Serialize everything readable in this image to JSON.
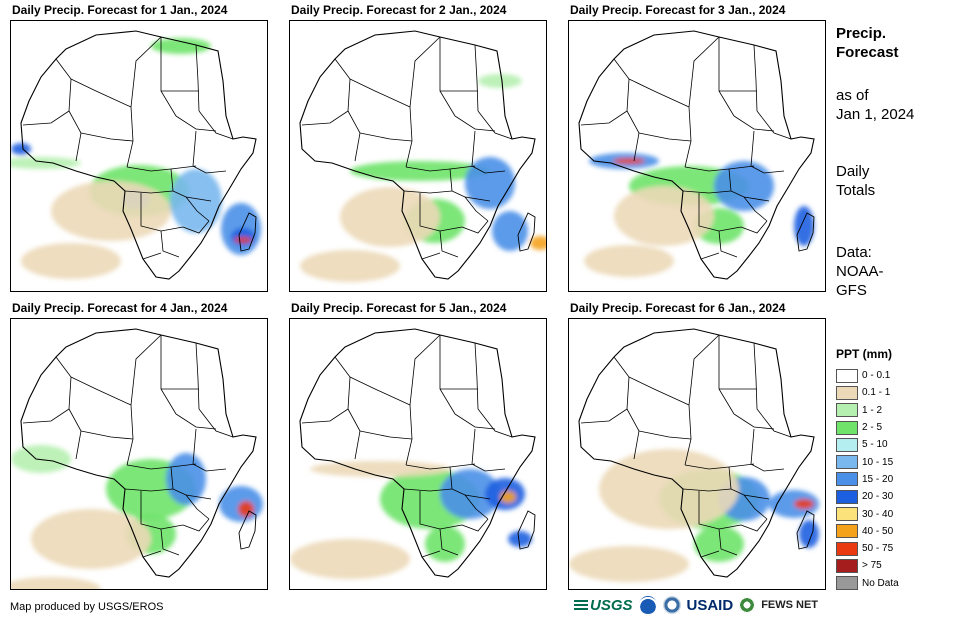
{
  "panels": [
    {
      "title": "Daily Precip. Forecast for 1 Jan., 2024"
    },
    {
      "title": "Daily Precip. Forecast for 2 Jan., 2024"
    },
    {
      "title": "Daily Precip. Forecast for 3 Jan., 2024"
    },
    {
      "title": "Daily Precip. Forecast for 4 Jan., 2024"
    },
    {
      "title": "Daily Precip. Forecast for 5 Jan., 2024"
    },
    {
      "title": "Daily Precip. Forecast for 6 Jan., 2024"
    }
  ],
  "sidebar": {
    "title_line1": "Precip.",
    "title_line2": "Forecast",
    "asof_line1": "as of",
    "asof_line2": "Jan 1, 2024",
    "totals_line1": "Daily",
    "totals_line2": "Totals",
    "data_line1": "Data:",
    "data_line2": "NOAA-",
    "data_line3": "GFS"
  },
  "legend": {
    "title": "PPT (mm)",
    "items": [
      {
        "label": "0 - 0.1",
        "color": "#ffffff"
      },
      {
        "label": "0.1 - 1",
        "color": "#ecd9b8"
      },
      {
        "label": "1 - 2",
        "color": "#b6f0b0"
      },
      {
        "label": "2 - 5",
        "color": "#6fe36a"
      },
      {
        "label": "5 - 10",
        "color": "#b4eef0"
      },
      {
        "label": "10 - 15",
        "color": "#79b8ee"
      },
      {
        "label": "15 - 20",
        "color": "#4a90e8"
      },
      {
        "label": "20 - 30",
        "color": "#1c5fe0"
      },
      {
        "label": "30 - 40",
        "color": "#fbe27a"
      },
      {
        "label": "40 - 50",
        "color": "#f4a21c"
      },
      {
        "label": "50 - 75",
        "color": "#ea3a12"
      },
      {
        "label": "> 75",
        "color": "#a51d1d"
      },
      {
        "label": "No Data",
        "color": "#999999"
      }
    ]
  },
  "footer": {
    "credit": "Map produced by USGS/EROS",
    "logo_usgs": "USGS",
    "logo_usaid": "USAID",
    "logo_fews": "FEWS NET"
  }
}
